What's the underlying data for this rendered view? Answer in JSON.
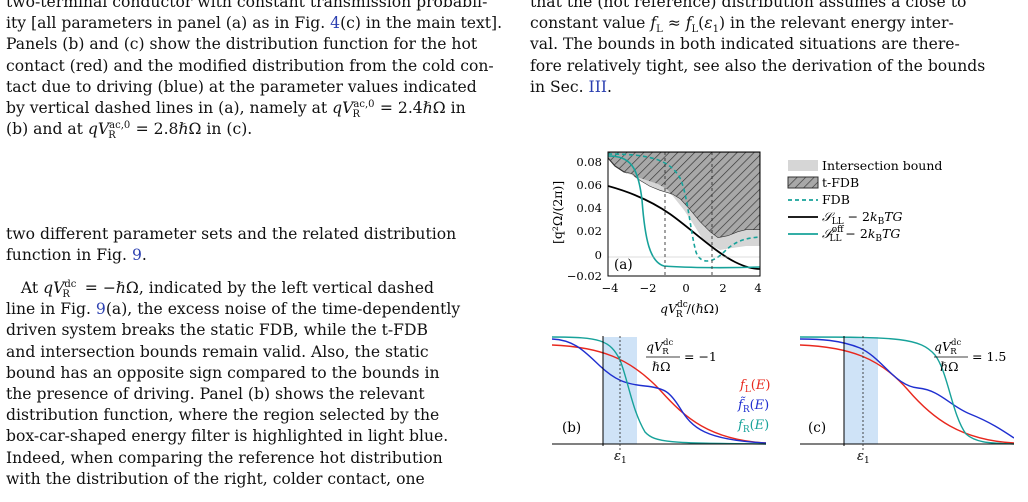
{
  "left": {
    "caption_lines": [
      "two-terminal conductor with constant transmission probabil-",
      "ity [all parameters in panel (a) as in Fig. 4(c) in the main text].",
      "Panels (b) and (c) show the distribution function for the hot",
      "contact (red) and the modified distribution from the cold con-",
      "tact due to driving (blue) at the parameter values indicated",
      "by vertical dashed lines in (a), namely at qV_R^{ac,0} = 2.4ℏΩ in",
      "(b) and at qV_R^{ac,0} = 2.8ℏΩ in (c)."
    ],
    "para1": "two different parameter sets and the related distribution function in Fig. 9.",
    "para2_lines": [
      "At qV_R^dc = −ℏΩ, indicated by the left vertical dashed",
      "line in Fig. 9(a), the excess noise of the time-dependently",
      "driven system breaks the static FDB, while the t-FDB",
      "and intersection bounds remain valid. Also, the static",
      "bound has an opposite sign compared to the bounds in",
      "the presence of driving. Panel (b) shows the relevant",
      "distribution function, where the region selected by the",
      "box-car-shaped energy filter is highlighted in light blue.",
      "Indeed, when comparing the reference hot distribution",
      "with the distribution of the right, colder contact, one"
    ]
  },
  "right": {
    "para_lines": [
      "that the (hot reference) distribution assumes a close to",
      "constant value f_L ≈ f_L(ε_1) in the relevant energy inter-",
      "val. The bounds in both indicated situations are there-",
      "fore relatively tight, see also the derivation of the bounds",
      "in Sec. III."
    ]
  },
  "figure": {
    "panel_a": {
      "label": "(a)",
      "ylabel": "[q²Ω/(2π)]",
      "xlabel": "qV_R^dc/(ℏΩ)",
      "xticks": [
        "−4",
        "−2",
        "0",
        "2",
        "4"
      ],
      "yticks": [
        "0.08",
        "0.06",
        "0.04",
        "0.02",
        "0",
        "−0.02"
      ]
    },
    "legend": {
      "intersection": "Intersection bound",
      "tfdb": "t-FDB",
      "fdb": "FDB",
      "sll": "S_LL − 2k_B TG",
      "sll_off": "S_LL^off − 2k_B TG"
    },
    "panel_b": {
      "label": "(b)",
      "eq_num": "qV_R^dc",
      "eq_den": "ℏΩ",
      "eq_rhs": "= −1",
      "eps": "ε1",
      "fL": "f_L(E)",
      "fR_tilde": "f̃_R(E)",
      "fR": "f_R(E)"
    },
    "panel_c": {
      "label": "(c)",
      "eq_num": "qV_R^dc",
      "eq_den": "ℏΩ",
      "eq_rhs": "= 1.5",
      "eps": "ε1"
    },
    "colors": {
      "red": "#e8281e",
      "blue": "#1f2fd0",
      "teal": "#17a29a",
      "shade": "#d6d6d6",
      "highlight": "#cfe3f7"
    }
  }
}
